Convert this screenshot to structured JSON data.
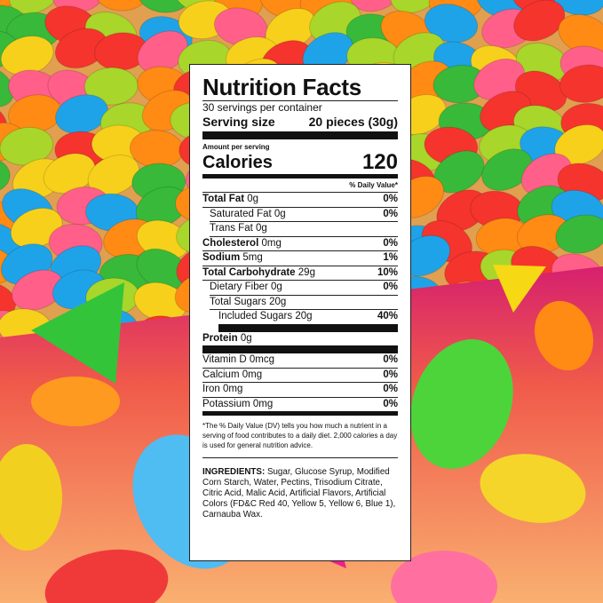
{
  "label": {
    "title": "Nutrition Facts",
    "servings_per_container": "30 servings per container",
    "serving_size_label": "Serving size",
    "serving_size_value": "20 pieces (30g)",
    "amount_per_serving": "Amount per serving",
    "calories_label": "Calories",
    "calories_value": "120",
    "dv_header": "% Daily Value*",
    "rows": [
      {
        "name": "Total Fat",
        "amount": "0g",
        "dv": "0%"
      },
      {
        "name": "Saturated Fat",
        "amount": "0g",
        "dv": "0%"
      },
      {
        "name": "Trans Fat",
        "amount": "0g"
      },
      {
        "name": "Cholesterol",
        "amount": "0mg",
        "dv": "0%"
      },
      {
        "name": "Sodium",
        "amount": "5mg",
        "dv": "1%"
      },
      {
        "name": "Total Carbohydrate",
        "amount": "29g",
        "dv": "10%"
      },
      {
        "name": "Dietary Fiber",
        "amount": "0g",
        "dv": "0%"
      },
      {
        "name": "Total Sugars",
        "amount": "20g"
      },
      {
        "name": "Included Sugars",
        "amount": "20g",
        "dv": "40%"
      },
      {
        "name": "Protein",
        "amount": "0g"
      }
    ],
    "vitamins": [
      {
        "name": "Vitamin D",
        "amount": "0mcg",
        "dv": "0%"
      },
      {
        "name": "Calcium",
        "amount": "0mg",
        "dv": "0%"
      },
      {
        "name": "Iron",
        "amount": "0mg",
        "dv": "0%"
      },
      {
        "name": "Potassium",
        "amount": "0mg",
        "dv": "0%"
      }
    ],
    "footnote": "*The % Daily Value (DV) tells you how much a nutrient in a serving of food contributes to a daily diet. 2,000 calories a day is used for general nutrition advice.",
    "ingredients_label": "INGREDIENTS:",
    "ingredients": "Sugar, Glucose Syrup, Modified Corn Starch, Water, Pectins, Trisodium Citrate, Citric Acid, Malic Acid, Artificial Flavors, Artificial Colors (FD&C Red 40, Yellow 5, Yellow 6, Blue 1), Carnauba Wax."
  }
}
